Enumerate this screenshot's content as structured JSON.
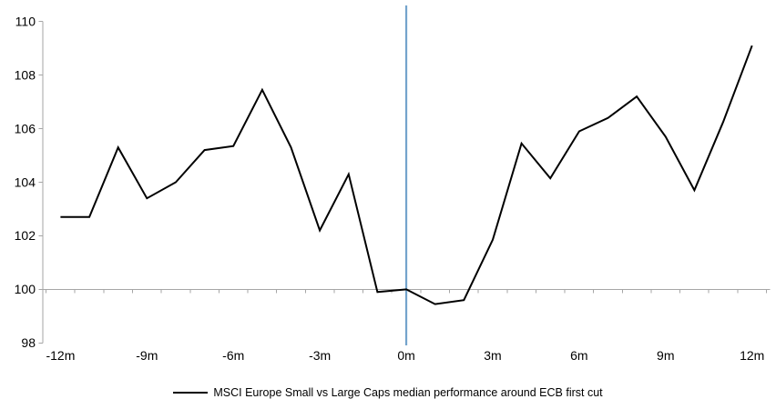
{
  "chart_data": {
    "type": "line",
    "x": [
      -12,
      -11,
      -10,
      -9,
      -8,
      -7,
      -6,
      -5,
      -4,
      -3,
      -2,
      -1,
      0,
      1,
      2,
      3,
      4,
      5,
      6,
      7,
      8,
      9,
      10,
      11,
      12
    ],
    "series": [
      {
        "name": "MSCI Europe Small vs Large Caps median performance around ECB first cut",
        "color": "#000000",
        "values": [
          102.7,
          102.7,
          105.3,
          103.4,
          104.0,
          105.2,
          105.35,
          107.45,
          105.3,
          102.2,
          104.3,
          99.9,
          100.0,
          99.45,
          99.6,
          101.85,
          105.45,
          104.15,
          105.9,
          106.4,
          107.2,
          105.7,
          103.7,
          106.25,
          109.1
        ]
      }
    ],
    "x_tick_labels": [
      "-12m",
      "-9m",
      "-6m",
      "-3m",
      "0m",
      "3m",
      "6m",
      "9m",
      "12m"
    ],
    "x_tick_positions": [
      -12,
      -9,
      -6,
      -3,
      0,
      3,
      6,
      9,
      12
    ],
    "y_ticks": [
      98,
      100,
      102,
      104,
      106,
      108,
      110
    ],
    "xlim": [
      -12.5,
      12.5
    ],
    "ylim": [
      98,
      110.6
    ],
    "baseline_value": 100,
    "event_line_x": 0,
    "grid": "off",
    "legend_position": "bottom-center",
    "colors": {
      "series": "#000000",
      "event_line": "#74a4cc",
      "axis": "#a6a6a6",
      "text": "#000000"
    }
  }
}
